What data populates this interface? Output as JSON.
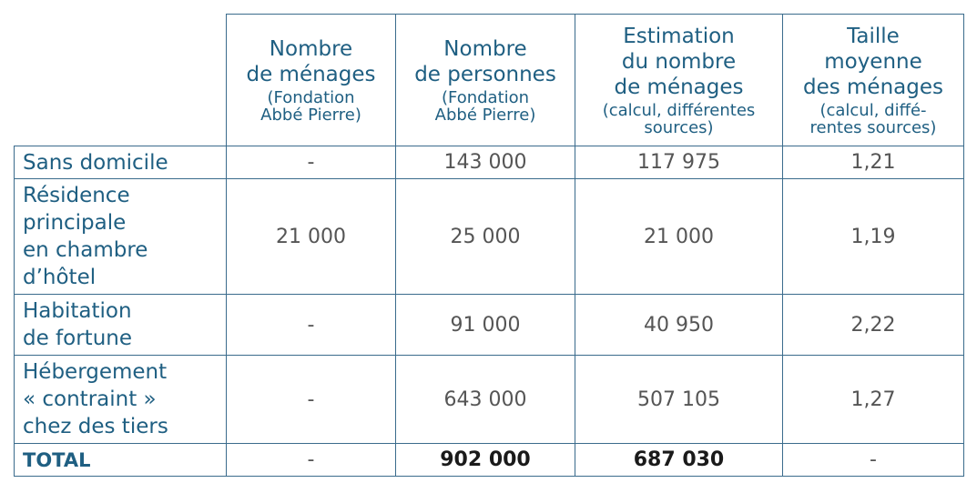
{
  "columns": [
    {
      "main": "Nombre\nde ménages",
      "sub": "(Fondation\nAbbé Pierre)"
    },
    {
      "main": "Nombre\nde personnes",
      "sub": "(Fondation\nAbbé Pierre)"
    },
    {
      "main": "Estimation\ndu nombre\nde ménages",
      "sub": "(calcul, différentes\nsources)"
    },
    {
      "main": "Taille\nmoyenne\ndes ménages",
      "sub": "(calcul, diffé-\nrentes sources)"
    }
  ],
  "rows": [
    {
      "label": "Sans domicile",
      "values": [
        "-",
        "143 000",
        "117 975",
        "1,21"
      ]
    },
    {
      "label": "Résidence\nprincipale\nen chambre\nd’hôtel",
      "values": [
        "21 000",
        "25 000",
        "21 000",
        "1,19"
      ]
    },
    {
      "label": "Habitation\nde fortune",
      "values": [
        "-",
        "91 000",
        "40 950",
        "2,22"
      ]
    },
    {
      "label": "Hébergement\n« contraint »\nchez des tiers",
      "values": [
        "-",
        "643 000",
        "507 105",
        "1,27"
      ]
    },
    {
      "label": "TOTAL",
      "values": [
        "-",
        "902 000",
        "687 030",
        "-"
      ]
    }
  ]
}
